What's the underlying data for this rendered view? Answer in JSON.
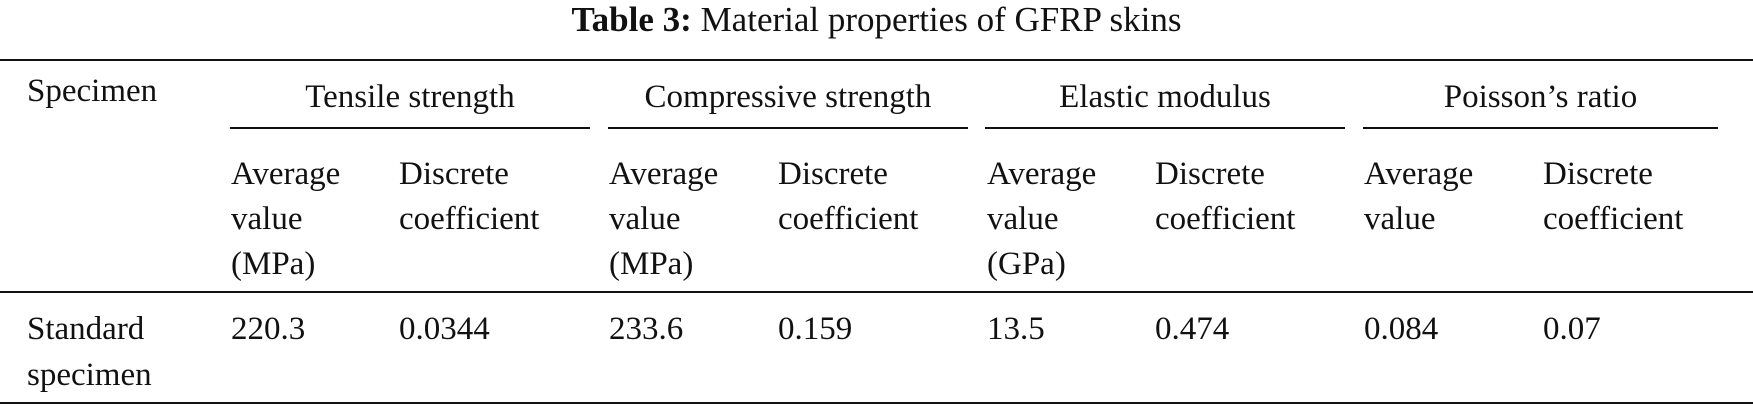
{
  "table": {
    "caption_label": "Table 3:",
    "caption_text": "Material properties of GFRP skins",
    "stub_header": "Specimen",
    "groups": [
      {
        "title": "Tensile strength"
      },
      {
        "title": "Compressive strength"
      },
      {
        "title": "Elastic modulus"
      },
      {
        "title": "Poisson’s ratio"
      }
    ],
    "subheaders": [
      [
        "Average",
        "value",
        "(MPa)"
      ],
      [
        "Discrete",
        "coefficient"
      ],
      [
        "Average",
        "value",
        "(MPa)"
      ],
      [
        "Discrete",
        "coefficient"
      ],
      [
        "Average",
        "value",
        "(GPa)"
      ],
      [
        "Discrete",
        "coefficient"
      ],
      [
        "Average",
        "value"
      ],
      [
        "Discrete",
        "coefficient"
      ]
    ],
    "rows": [
      {
        "specimen": [
          "Standard",
          "specimen"
        ],
        "values": [
          "220.3",
          "0.0344",
          "233.6",
          "0.159",
          "13.5",
          "0.474",
          "0.084",
          "0.07"
        ]
      }
    ]
  }
}
